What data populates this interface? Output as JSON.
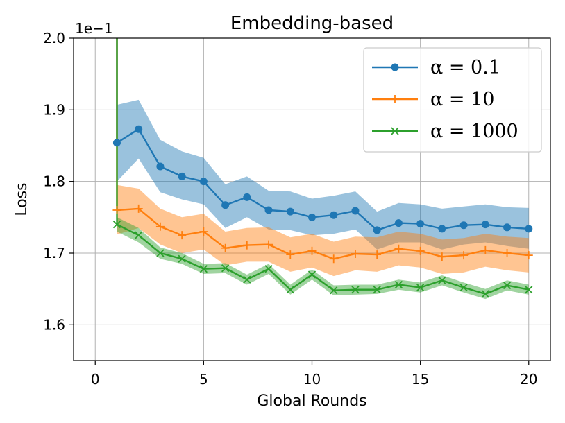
{
  "chart_data": {
    "type": "line",
    "title": "Embedding-based",
    "xlabel": "Global Rounds",
    "ylabel": "Loss",
    "y_offset_label": "1e−1",
    "xlim": [
      -1,
      21
    ],
    "ylim": [
      1.55,
      2.0
    ],
    "xticks": [
      0,
      5,
      10,
      15,
      20
    ],
    "xtick_labels": [
      "0",
      "5",
      "10",
      "15",
      "20"
    ],
    "yticks": [
      1.6,
      1.7,
      1.8,
      1.9,
      2.0
    ],
    "ytick_labels": [
      "1.6",
      "1.7",
      "1.8",
      "1.9",
      "2.0"
    ],
    "grid": true,
    "legend_position": "top-right",
    "series": [
      {
        "name": "α = 0.1",
        "color": "#1f77b4",
        "marker": "circle",
        "x": [
          1,
          2,
          3,
          4,
          5,
          6,
          7,
          8,
          9,
          10,
          11,
          12,
          13,
          14,
          15,
          16,
          17,
          18,
          19,
          20
        ],
        "values": [
          1.854,
          1.873,
          1.821,
          1.807,
          1.8,
          1.767,
          1.778,
          1.76,
          1.758,
          1.75,
          1.753,
          1.759,
          1.732,
          1.742,
          1.741,
          1.734,
          1.739,
          1.74,
          1.736,
          1.734
        ],
        "lower": [
          1.8,
          1.832,
          1.785,
          1.775,
          1.768,
          1.735,
          1.75,
          1.733,
          1.732,
          1.725,
          1.727,
          1.733,
          1.705,
          1.715,
          1.715,
          1.705,
          1.712,
          1.715,
          1.71,
          1.706
        ],
        "upper": [
          1.907,
          1.914,
          1.858,
          1.842,
          1.833,
          1.796,
          1.807,
          1.787,
          1.786,
          1.776,
          1.78,
          1.786,
          1.758,
          1.77,
          1.768,
          1.762,
          1.765,
          1.768,
          1.764,
          1.763
        ],
        "start_point": [
          1,
          2.0
        ]
      },
      {
        "name": "α = 10",
        "color": "#ff7f0e",
        "marker": "plus",
        "x": [
          1,
          2,
          3,
          4,
          5,
          6,
          7,
          8,
          9,
          10,
          11,
          12,
          13,
          14,
          15,
          16,
          17,
          18,
          19,
          20
        ],
        "values": [
          1.76,
          1.762,
          1.737,
          1.725,
          1.73,
          1.707,
          1.711,
          1.712,
          1.698,
          1.703,
          1.692,
          1.699,
          1.698,
          1.706,
          1.703,
          1.695,
          1.697,
          1.704,
          1.7,
          1.697
        ],
        "lower": [
          1.726,
          1.735,
          1.712,
          1.7,
          1.705,
          1.683,
          1.688,
          1.688,
          1.674,
          1.68,
          1.668,
          1.676,
          1.674,
          1.683,
          1.68,
          1.671,
          1.673,
          1.681,
          1.676,
          1.673
        ],
        "upper": [
          1.795,
          1.79,
          1.762,
          1.75,
          1.755,
          1.73,
          1.735,
          1.736,
          1.722,
          1.727,
          1.716,
          1.723,
          1.722,
          1.73,
          1.727,
          1.719,
          1.721,
          1.727,
          1.723,
          1.721
        ],
        "start_point": [
          1,
          2.0
        ]
      },
      {
        "name": "α = 1000",
        "color": "#2ca02c",
        "marker": "x",
        "x": [
          1,
          2,
          3,
          4,
          5,
          6,
          7,
          8,
          9,
          10,
          11,
          12,
          13,
          14,
          15,
          16,
          17,
          18,
          19,
          20
        ],
        "values": [
          1.74,
          1.725,
          1.7,
          1.692,
          1.678,
          1.679,
          1.663,
          1.678,
          1.649,
          1.67,
          1.648,
          1.649,
          1.649,
          1.656,
          1.652,
          1.662,
          1.652,
          1.643,
          1.655,
          1.649
        ],
        "lower": [
          1.73,
          1.715,
          1.692,
          1.685,
          1.671,
          1.672,
          1.656,
          1.671,
          1.642,
          1.663,
          1.641,
          1.642,
          1.643,
          1.649,
          1.645,
          1.655,
          1.645,
          1.636,
          1.648,
          1.642
        ],
        "upper": [
          1.75,
          1.735,
          1.708,
          1.7,
          1.685,
          1.686,
          1.67,
          1.685,
          1.656,
          1.677,
          1.655,
          1.656,
          1.656,
          1.663,
          1.659,
          1.669,
          1.659,
          1.65,
          1.662,
          1.656
        ],
        "start_point": [
          1,
          2.0
        ]
      }
    ]
  }
}
